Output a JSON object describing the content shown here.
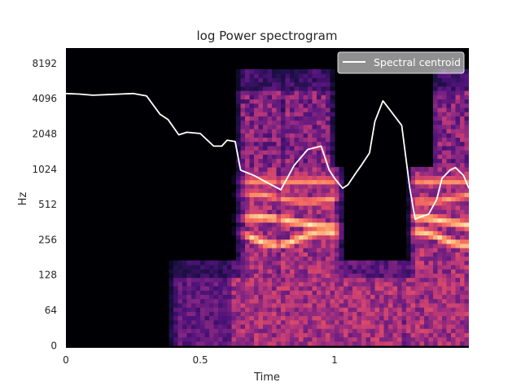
{
  "chart_data": {
    "type": "heatmap",
    "title": "log Power spectrogram",
    "xlabel": "Time",
    "ylabel": "Hz",
    "x_range": [
      0,
      1.5
    ],
    "x_ticks": [
      {
        "value": 0,
        "label": "0"
      },
      {
        "value": 0.5,
        "label": "0.5"
      },
      {
        "value": 1,
        "label": "1"
      }
    ],
    "y_scale": "log",
    "y_range": [
      0,
      11025
    ],
    "y_ticks": [
      {
        "value": 0,
        "label": "0"
      },
      {
        "value": 64,
        "label": "64"
      },
      {
        "value": 128,
        "label": "128"
      },
      {
        "value": 256,
        "label": "256"
      },
      {
        "value": 512,
        "label": "512"
      },
      {
        "value": 1024,
        "label": "1024"
      },
      {
        "value": 2048,
        "label": "2048"
      },
      {
        "value": 4096,
        "label": "4096"
      },
      {
        "value": 8192,
        "label": "8192"
      }
    ],
    "colormap": "magma",
    "legend": {
      "position": "top-right",
      "entries": [
        {
          "label": "Spectral centroid",
          "color": "#ffffff"
        }
      ]
    },
    "spectral_centroid": {
      "name": "Spectral centroid",
      "color": "#ffffff",
      "t": [
        0.0,
        0.05,
        0.1,
        0.15,
        0.2,
        0.25,
        0.3,
        0.35,
        0.38,
        0.42,
        0.45,
        0.5,
        0.55,
        0.58,
        0.6,
        0.63,
        0.65,
        0.7,
        0.75,
        0.8,
        0.85,
        0.9,
        0.95,
        0.98,
        1.0,
        1.03,
        1.05,
        1.08,
        1.1,
        1.13,
        1.15,
        1.18,
        1.2,
        1.25,
        1.28,
        1.3,
        1.32,
        1.35,
        1.38,
        1.4,
        1.43,
        1.45,
        1.48,
        1.5
      ],
      "hz": [
        4500,
        4450,
        4350,
        4400,
        4450,
        4500,
        4300,
        3000,
        2700,
        2000,
        2100,
        2050,
        1600,
        1600,
        1800,
        1750,
        1000,
        900,
        780,
        680,
        1100,
        1500,
        1600,
        1000,
        850,
        700,
        750,
        950,
        1100,
        1400,
        2600,
        3900,
        3400,
        2400,
        700,
        380,
        400,
        420,
        560,
        850,
        1000,
        1050,
        900,
        700
      ]
    }
  }
}
